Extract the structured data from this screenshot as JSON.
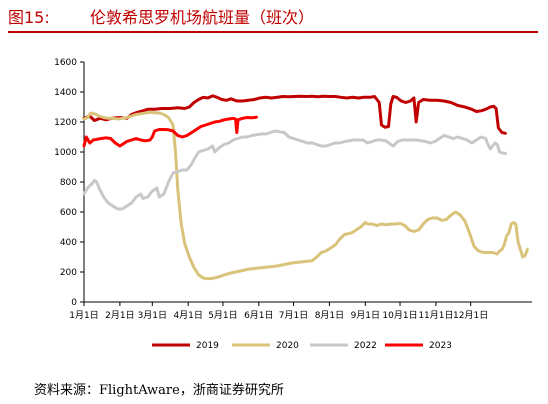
{
  "figure": {
    "number": "图15:",
    "title": "伦敦希思罗机场航班量（班次）",
    "source": "资料来源：FlightAware，浙商证券研究所"
  },
  "chart_data": {
    "type": "line",
    "title": "伦敦希思罗机场航班量（班次）",
    "xlabel": "",
    "ylabel": "",
    "ylim": [
      0,
      1600
    ],
    "yticks": [
      0,
      200,
      400,
      600,
      800,
      1000,
      1200,
      1400,
      1600
    ],
    "xticks": [
      "1月1日",
      "2月1日",
      "3月1日",
      "4月1日",
      "5月1日",
      "6月1日",
      "7月1日",
      "8月1日",
      "9月1日",
      "10月1日",
      "11月1日",
      "12月1日"
    ],
    "x_unit": "day of year (1 = 1月1日)",
    "grid": false,
    "legend_position": "bottom",
    "series": [
      {
        "name": "2019",
        "color": "#c00000",
        "points": [
          [
            1,
            1225
          ],
          [
            6,
            1240
          ],
          [
            10,
            1210
          ],
          [
            15,
            1225
          ],
          [
            20,
            1215
          ],
          [
            25,
            1225
          ],
          [
            32,
            1230
          ],
          [
            38,
            1225
          ],
          [
            42,
            1250
          ],
          [
            47,
            1265
          ],
          [
            52,
            1275
          ],
          [
            56,
            1285
          ],
          [
            62,
            1285
          ],
          [
            68,
            1290
          ],
          [
            75,
            1290
          ],
          [
            82,
            1295
          ],
          [
            88,
            1290
          ],
          [
            92,
            1300
          ],
          [
            96,
            1330
          ],
          [
            100,
            1350
          ],
          [
            104,
            1365
          ],
          [
            108,
            1360
          ],
          [
            112,
            1375
          ],
          [
            116,
            1365
          ],
          [
            120,
            1350
          ],
          [
            124,
            1345
          ],
          [
            128,
            1355
          ],
          [
            133,
            1340
          ],
          [
            138,
            1340
          ],
          [
            143,
            1345
          ],
          [
            148,
            1350
          ],
          [
            153,
            1360
          ],
          [
            158,
            1365
          ],
          [
            163,
            1360
          ],
          [
            168,
            1365
          ],
          [
            173,
            1370
          ],
          [
            178,
            1368
          ],
          [
            183,
            1370
          ],
          [
            188,
            1372
          ],
          [
            193,
            1370
          ],
          [
            198,
            1372
          ],
          [
            203,
            1368
          ],
          [
            208,
            1372
          ],
          [
            213,
            1370
          ],
          [
            218,
            1370
          ],
          [
            223,
            1365
          ],
          [
            228,
            1360
          ],
          [
            233,
            1365
          ],
          [
            238,
            1360
          ],
          [
            243,
            1365
          ],
          [
            248,
            1365
          ],
          [
            252,
            1370
          ],
          [
            256,
            1330
          ],
          [
            258,
            1180
          ],
          [
            261,
            1165
          ],
          [
            264,
            1170
          ],
          [
            266,
            1320
          ],
          [
            268,
            1370
          ],
          [
            271,
            1365
          ],
          [
            275,
            1340
          ],
          [
            279,
            1330
          ],
          [
            283,
            1340
          ],
          [
            286,
            1360
          ],
          [
            288,
            1200
          ],
          [
            290,
            1330
          ],
          [
            294,
            1350
          ],
          [
            300,
            1345
          ],
          [
            306,
            1345
          ],
          [
            312,
            1340
          ],
          [
            318,
            1330
          ],
          [
            324,
            1310
          ],
          [
            330,
            1300
          ],
          [
            336,
            1285
          ],
          [
            340,
            1270
          ],
          [
            344,
            1275
          ],
          [
            348,
            1285
          ],
          [
            352,
            1300
          ],
          [
            355,
            1305
          ],
          [
            357,
            1290
          ],
          [
            359,
            1160
          ],
          [
            362,
            1130
          ],
          [
            365,
            1125
          ]
        ]
      },
      {
        "name": "2020",
        "color": "#d9c27a",
        "points": [
          [
            1,
            1220
          ],
          [
            4,
            1230
          ],
          [
            7,
            1260
          ],
          [
            10,
            1255
          ],
          [
            14,
            1240
          ],
          [
            18,
            1230
          ],
          [
            22,
            1225
          ],
          [
            26,
            1225
          ],
          [
            30,
            1220
          ],
          [
            34,
            1225
          ],
          [
            38,
            1230
          ],
          [
            42,
            1240
          ],
          [
            46,
            1250
          ],
          [
            50,
            1255
          ],
          [
            54,
            1260
          ],
          [
            58,
            1265
          ],
          [
            62,
            1262
          ],
          [
            66,
            1260
          ],
          [
            70,
            1250
          ],
          [
            74,
            1230
          ],
          [
            78,
            1180
          ],
          [
            80,
            1000
          ],
          [
            82,
            750
          ],
          [
            85,
            520
          ],
          [
            88,
            390
          ],
          [
            92,
            300
          ],
          [
            96,
            230
          ],
          [
            100,
            180
          ],
          [
            104,
            160
          ],
          [
            108,
            155
          ],
          [
            112,
            158
          ],
          [
            116,
            165
          ],
          [
            120,
            175
          ],
          [
            126,
            190
          ],
          [
            132,
            200
          ],
          [
            138,
            210
          ],
          [
            144,
            220
          ],
          [
            150,
            225
          ],
          [
            156,
            230
          ],
          [
            162,
            235
          ],
          [
            168,
            240
          ],
          [
            174,
            250
          ],
          [
            180,
            260
          ],
          [
            186,
            265
          ],
          [
            192,
            270
          ],
          [
            198,
            275
          ],
          [
            202,
            300
          ],
          [
            206,
            330
          ],
          [
            210,
            340
          ],
          [
            214,
            360
          ],
          [
            218,
            380
          ],
          [
            222,
            420
          ],
          [
            226,
            450
          ],
          [
            232,
            460
          ],
          [
            236,
            480
          ],
          [
            240,
            500
          ],
          [
            244,
            530
          ],
          [
            246,
            520
          ],
          [
            250,
            520
          ],
          [
            254,
            510
          ],
          [
            258,
            520
          ],
          [
            262,
            515
          ],
          [
            266,
            520
          ],
          [
            270,
            520
          ],
          [
            274,
            525
          ],
          [
            278,
            510
          ],
          [
            282,
            480
          ],
          [
            286,
            470
          ],
          [
            290,
            480
          ],
          [
            294,
            520
          ],
          [
            298,
            550
          ],
          [
            302,
            560
          ],
          [
            306,
            560
          ],
          [
            310,
            545
          ],
          [
            314,
            550
          ],
          [
            318,
            580
          ],
          [
            322,
            600
          ],
          [
            326,
            580
          ],
          [
            330,
            540
          ],
          [
            334,
            460
          ],
          [
            338,
            370
          ],
          [
            342,
            340
          ],
          [
            346,
            330
          ],
          [
            350,
            330
          ],
          [
            354,
            330
          ],
          [
            358,
            320
          ],
          [
            360,
            340
          ],
          [
            362,
            350
          ],
          [
            364,
            380
          ],
          [
            366,
            440
          ],
          [
            368,
            460
          ],
          [
            370,
            520
          ],
          [
            372,
            530
          ],
          [
            374,
            520
          ],
          [
            376,
            400
          ],
          [
            378,
            350
          ],
          [
            380,
            300
          ],
          [
            382,
            310
          ],
          [
            384,
            350
          ]
        ]
      },
      {
        "name": "2022",
        "color": "#c8c8c8",
        "points": [
          [
            1,
            720
          ],
          [
            4,
            760
          ],
          [
            8,
            790
          ],
          [
            10,
            810
          ],
          [
            12,
            800
          ],
          [
            14,
            760
          ],
          [
            18,
            700
          ],
          [
            22,
            660
          ],
          [
            26,
            640
          ],
          [
            30,
            620
          ],
          [
            34,
            620
          ],
          [
            38,
            640
          ],
          [
            42,
            660
          ],
          [
            46,
            700
          ],
          [
            50,
            720
          ],
          [
            52,
            690
          ],
          [
            56,
            700
          ],
          [
            60,
            740
          ],
          [
            64,
            760
          ],
          [
            66,
            700
          ],
          [
            70,
            720
          ],
          [
            74,
            800
          ],
          [
            78,
            860
          ],
          [
            82,
            870
          ],
          [
            86,
            880
          ],
          [
            90,
            880
          ],
          [
            94,
            920
          ],
          [
            96,
            950
          ],
          [
            100,
            1000
          ],
          [
            104,
            1010
          ],
          [
            108,
            1020
          ],
          [
            112,
            1040
          ],
          [
            114,
            1000
          ],
          [
            118,
            1030
          ],
          [
            122,
            1050
          ],
          [
            126,
            1060
          ],
          [
            130,
            1080
          ],
          [
            134,
            1090
          ],
          [
            138,
            1100
          ],
          [
            142,
            1100
          ],
          [
            146,
            1110
          ],
          [
            150,
            1115
          ],
          [
            154,
            1120
          ],
          [
            158,
            1120
          ],
          [
            162,
            1130
          ],
          [
            166,
            1140
          ],
          [
            170,
            1135
          ],
          [
            174,
            1130
          ],
          [
            178,
            1100
          ],
          [
            182,
            1090
          ],
          [
            186,
            1080
          ],
          [
            190,
            1070
          ],
          [
            194,
            1060
          ],
          [
            198,
            1060
          ],
          [
            202,
            1050
          ],
          [
            206,
            1040
          ],
          [
            210,
            1040
          ],
          [
            214,
            1050
          ],
          [
            218,
            1060
          ],
          [
            222,
            1060
          ],
          [
            226,
            1070
          ],
          [
            230,
            1075
          ],
          [
            234,
            1080
          ],
          [
            238,
            1080
          ],
          [
            242,
            1080
          ],
          [
            246,
            1060
          ],
          [
            250,
            1070
          ],
          [
            254,
            1080
          ],
          [
            258,
            1080
          ],
          [
            262,
            1075
          ],
          [
            266,
            1050
          ],
          [
            268,
            1040
          ],
          [
            272,
            1070
          ],
          [
            276,
            1080
          ],
          [
            280,
            1080
          ],
          [
            284,
            1080
          ],
          [
            288,
            1080
          ],
          [
            292,
            1075
          ],
          [
            296,
            1070
          ],
          [
            300,
            1060
          ],
          [
            304,
            1070
          ],
          [
            308,
            1090
          ],
          [
            312,
            1110
          ],
          [
            316,
            1100
          ],
          [
            320,
            1090
          ],
          [
            324,
            1100
          ],
          [
            328,
            1090
          ],
          [
            332,
            1080
          ],
          [
            336,
            1060
          ],
          [
            340,
            1080
          ],
          [
            344,
            1100
          ],
          [
            348,
            1090
          ],
          [
            350,
            1050
          ],
          [
            352,
            1020
          ],
          [
            354,
            1040
          ],
          [
            356,
            1060
          ],
          [
            358,
            1050
          ],
          [
            360,
            1000
          ],
          [
            362,
            995
          ],
          [
            365,
            990
          ]
        ]
      },
      {
        "name": "2023",
        "color": "#ff0000",
        "points": [
          [
            1,
            1040
          ],
          [
            3,
            1100
          ],
          [
            6,
            1060
          ],
          [
            9,
            1080
          ],
          [
            12,
            1085
          ],
          [
            16,
            1090
          ],
          [
            20,
            1095
          ],
          [
            24,
            1090
          ],
          [
            28,
            1060
          ],
          [
            32,
            1040
          ],
          [
            34,
            1050
          ],
          [
            38,
            1070
          ],
          [
            42,
            1080
          ],
          [
            46,
            1090
          ],
          [
            50,
            1080
          ],
          [
            54,
            1075
          ],
          [
            58,
            1080
          ],
          [
            60,
            1100
          ],
          [
            62,
            1140
          ],
          [
            66,
            1150
          ],
          [
            70,
            1150
          ],
          [
            74,
            1148
          ],
          [
            78,
            1140
          ],
          [
            82,
            1110
          ],
          [
            86,
            1100
          ],
          [
            90,
            1110
          ],
          [
            94,
            1130
          ],
          [
            98,
            1150
          ],
          [
            102,
            1170
          ],
          [
            106,
            1180
          ],
          [
            110,
            1190
          ],
          [
            114,
            1200
          ],
          [
            118,
            1205
          ],
          [
            122,
            1215
          ],
          [
            126,
            1220
          ],
          [
            130,
            1225
          ],
          [
            132,
            1220
          ],
          [
            133,
            1130
          ],
          [
            134,
            1215
          ],
          [
            138,
            1225
          ],
          [
            142,
            1230
          ],
          [
            146,
            1228
          ],
          [
            150,
            1232
          ]
        ]
      }
    ]
  }
}
